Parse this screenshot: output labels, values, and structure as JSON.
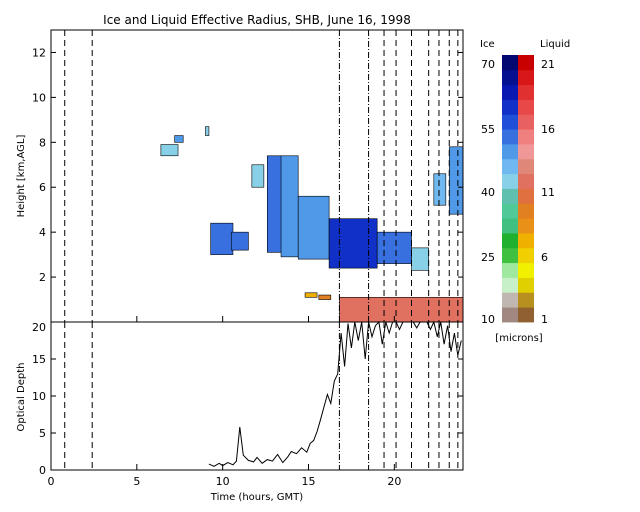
{
  "chart_data": [
    {
      "type": "heatmap",
      "title": "Ice and Liquid Effective Radius, SHB, June 16, 1998",
      "ylabel": "Height [km,AGL]",
      "xlim": [
        0,
        24
      ],
      "ylim": [
        0,
        13
      ],
      "yticks": [
        2,
        4,
        6,
        8,
        10,
        12
      ],
      "xticks": [
        0,
        5,
        10,
        15,
        20
      ],
      "ice_regions": [
        {
          "x": [
            6.4,
            7.4
          ],
          "y": [
            7.4,
            7.9
          ],
          "radius": 42
        },
        {
          "x": [
            7.2,
            7.7
          ],
          "y": [
            8.0,
            8.3
          ],
          "radius": 48
        },
        {
          "x": [
            9.0,
            9.2
          ],
          "y": [
            8.3,
            8.7
          ],
          "radius": 40
        },
        {
          "x": [
            9.3,
            10.6
          ],
          "y": [
            3.0,
            4.4
          ],
          "radius": 52
        },
        {
          "x": [
            10.5,
            11.5
          ],
          "y": [
            3.2,
            4.0
          ],
          "radius": 50
        },
        {
          "x": [
            11.7,
            12.4
          ],
          "y": [
            6.0,
            7.0
          ],
          "radius": 42
        },
        {
          "x": [
            12.6,
            13.5
          ],
          "y": [
            3.1,
            7.4
          ],
          "radius": 50
        },
        {
          "x": [
            13.4,
            14.4
          ],
          "y": [
            2.9,
            7.4
          ],
          "radius": 47
        },
        {
          "x": [
            14.4,
            16.2
          ],
          "y": [
            2.8,
            5.6
          ],
          "radius": 47
        },
        {
          "x": [
            16.2,
            19.0
          ],
          "y": [
            2.4,
            4.6
          ],
          "radius": 58
        },
        {
          "x": [
            19.0,
            21.0
          ],
          "y": [
            2.6,
            4.0
          ],
          "radius": 52
        },
        {
          "x": [
            21.0,
            22.0
          ],
          "y": [
            2.3,
            3.3
          ],
          "radius": 40
        },
        {
          "x": [
            22.3,
            23.0
          ],
          "y": [
            5.2,
            6.6
          ],
          "radius": 44
        },
        {
          "x": [
            23.2,
            24.0
          ],
          "y": [
            4.8,
            7.8
          ],
          "radius": 48
        }
      ],
      "liquid_regions": [
        {
          "x": [
            14.8,
            15.5
          ],
          "y": [
            1.1,
            1.3
          ],
          "radius": 7
        },
        {
          "x": [
            15.6,
            16.3
          ],
          "y": [
            1.0,
            1.2
          ],
          "radius": 9
        },
        {
          "x": [
            16.8,
            24.0
          ],
          "y": [
            0.0,
            1.1
          ],
          "radius": 12
        }
      ],
      "dash_dot_lines_hours": [
        16.8,
        18.5
      ],
      "dashed_lines_hours": [
        0.8,
        2.4,
        19.4,
        20.1,
        21.0,
        22.0,
        22.6,
        23.2,
        23.7
      ],
      "colorbar": {
        "ice_label": "Ice",
        "liquid_label": "Liquid",
        "units": "[microns]",
        "ice_ticks": [
          "70",
          "55",
          "40",
          "25",
          "10"
        ],
        "liquid_ticks": [
          "21",
          "16",
          "11",
          "6",
          "1"
        ],
        "ice_colors": [
          "#a08880",
          "#c0b8b0",
          "#c8f0c8",
          "#a0e8a0",
          "#40c040",
          "#20b030",
          "#40c080",
          "#50c898",
          "#60c0b0",
          "#88d0e8",
          "#70b8f0",
          "#5098e8",
          "#3870e0",
          "#2050d8",
          "#1030c8",
          "#0818b0",
          "#041090",
          "#020870"
        ],
        "liquid_colors": [
          "#906030",
          "#b89020",
          "#e0d000",
          "#f0f000",
          "#f0d000",
          "#f0b000",
          "#e89018",
          "#e08020",
          "#e07040",
          "#e07060",
          "#e08878",
          "#f09898",
          "#f08080",
          "#e86060",
          "#e84848",
          "#e03030",
          "#d81818",
          "#c80000"
        ]
      }
    },
    {
      "type": "line",
      "ylabel": "Optical Depth",
      "xlabel": "Time (hours, GMT)",
      "xlim": [
        0,
        24
      ],
      "ylim": [
        0,
        20
      ],
      "xticks": [
        0,
        5,
        10,
        15,
        20
      ],
      "yticks": [
        0,
        5,
        10,
        15,
        20
      ],
      "x": [
        9.2,
        9.5,
        9.8,
        10.0,
        10.3,
        10.6,
        10.8,
        11.0,
        11.2,
        11.5,
        11.8,
        12.0,
        12.3,
        12.6,
        12.9,
        13.2,
        13.5,
        13.8,
        14.0,
        14.3,
        14.6,
        14.9,
        15.1,
        15.3,
        15.5,
        15.7,
        15.9,
        16.1,
        16.3,
        16.5,
        16.7,
        16.9,
        17.1,
        17.3,
        17.5,
        17.7,
        17.9,
        18.1,
        18.3,
        18.5,
        18.7,
        18.9,
        19.1,
        19.3,
        19.5,
        19.7,
        19.9,
        20.1,
        20.3,
        20.5,
        20.7,
        20.9,
        21.1,
        21.3,
        21.5,
        21.7,
        21.9,
        22.1,
        22.3,
        22.5,
        22.7,
        22.9,
        23.1,
        23.3,
        23.5,
        23.7,
        23.9
      ],
      "values": [
        0.8,
        0.5,
        0.9,
        0.6,
        1.0,
        0.7,
        1.2,
        5.8,
        2.0,
        1.3,
        1.1,
        1.7,
        0.9,
        1.4,
        1.2,
        2.1,
        1.0,
        1.8,
        2.5,
        2.2,
        3.0,
        2.4,
        3.6,
        4.0,
        5.2,
        6.8,
        8.5,
        10.2,
        9.0,
        12.0,
        13.0,
        18.5,
        14.0,
        19.8,
        16.5,
        20.0,
        17.5,
        20.0,
        15.0,
        20.0,
        18.0,
        19.5,
        20.0,
        17.0,
        20.0,
        18.5,
        20.0,
        20.0,
        19.0,
        20.0,
        20.0,
        20.0,
        20.0,
        19.2,
        20.0,
        20.0,
        20.0,
        19.0,
        20.0,
        18.0,
        20.0,
        17.0,
        19.5,
        16.0,
        18.5,
        15.5,
        17.5
      ],
      "dash_dot_lines_hours": [
        16.8,
        18.5
      ],
      "dashed_lines_hours": [
        0.8,
        2.4,
        19.4,
        20.1,
        21.0,
        22.0,
        22.6,
        23.2,
        23.7
      ]
    }
  ]
}
